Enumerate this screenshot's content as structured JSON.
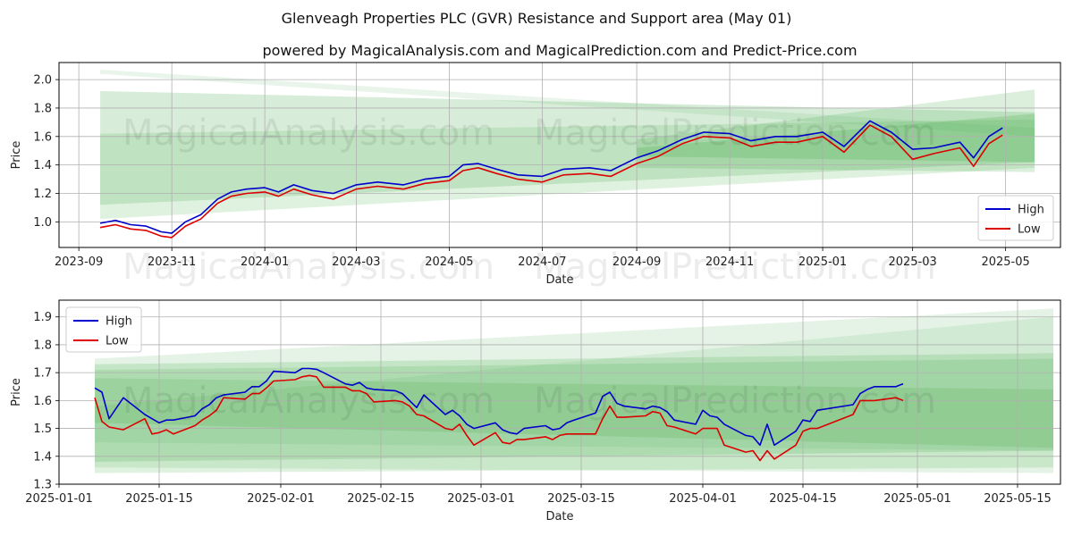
{
  "title": "Glenveagh Properties PLC (GVR) Resistance and Support area (May 01)",
  "subtitle": "powered by MagicalAnalysis.com and MagicalPrediction.com and Predict-Price.com",
  "watermarks": [
    "MagicalAnalysis.com",
    "MagicalPrediction.com"
  ],
  "colors": {
    "high": "#0000cc",
    "low": "#dd0000",
    "band": "#4caf50",
    "grid": "#b0b0b0"
  },
  "chart_data": [
    {
      "type": "line",
      "xlabel": "Date",
      "ylabel": "Price",
      "ylim": [
        0.82,
        2.12
      ],
      "xlim": [
        "2023-08-19",
        "2025-06-06"
      ],
      "grid": true,
      "legend_position": "lower-right",
      "x_ticks": [
        "2023-09",
        "2023-11",
        "2024-01",
        "2024-03",
        "2024-05",
        "2024-07",
        "2024-09",
        "2024-11",
        "2025-01",
        "2025-03",
        "2025-05"
      ],
      "y_ticks": [
        "1.0",
        "1.2",
        "1.4",
        "1.6",
        "1.8",
        "2.0"
      ],
      "bands": [
        {
          "x": [
            "2023-09-15",
            "2025-05-20"
          ],
          "top": [
            1.92,
            1.77
          ],
          "bottom": [
            1.12,
            1.42
          ],
          "opacity": 0.22
        },
        {
          "x": [
            "2023-09-15",
            "2025-05-20"
          ],
          "top": [
            1.62,
            1.72
          ],
          "bottom": [
            1.02,
            1.38
          ],
          "opacity": 0.18
        },
        {
          "x": [
            "2024-09-01",
            "2025-05-20"
          ],
          "top": [
            1.58,
            1.93
          ],
          "bottom": [
            1.38,
            1.35
          ],
          "opacity": 0.2
        },
        {
          "x": [
            "2024-09-01",
            "2025-05-20"
          ],
          "top": [
            1.52,
            1.76
          ],
          "bottom": [
            1.46,
            1.42
          ],
          "opacity": 0.25
        },
        {
          "x": [
            "2023-09-15",
            "2025-05-20"
          ],
          "top": [
            2.07,
            1.66
          ],
          "bottom": [
            2.04,
            1.6
          ],
          "opacity": 0.12
        }
      ],
      "series": [
        {
          "name": "High",
          "x": [
            "2023-09-15",
            "2023-09-25",
            "2023-10-05",
            "2023-10-15",
            "2023-10-25",
            "2023-11-01",
            "2023-11-10",
            "2023-11-20",
            "2023-12-01",
            "2023-12-10",
            "2023-12-20",
            "2024-01-01",
            "2024-01-10",
            "2024-01-20",
            "2024-02-01",
            "2024-02-15",
            "2024-03-01",
            "2024-03-15",
            "2024-04-01",
            "2024-04-15",
            "2024-05-01",
            "2024-05-10",
            "2024-05-20",
            "2024-06-01",
            "2024-06-15",
            "2024-07-01",
            "2024-07-15",
            "2024-08-01",
            "2024-08-15",
            "2024-09-01",
            "2024-09-15",
            "2024-10-01",
            "2024-10-15",
            "2024-11-01",
            "2024-11-15",
            "2024-12-01",
            "2024-12-15",
            "2025-01-01",
            "2025-01-15",
            "2025-02-01",
            "2025-02-15",
            "2025-03-01",
            "2025-03-15",
            "2025-04-01",
            "2025-04-10",
            "2025-04-20",
            "2025-04-29"
          ],
          "values": [
            0.99,
            1.01,
            0.98,
            0.97,
            0.93,
            0.92,
            1.0,
            1.05,
            1.16,
            1.21,
            1.23,
            1.24,
            1.21,
            1.26,
            1.22,
            1.2,
            1.26,
            1.28,
            1.26,
            1.3,
            1.32,
            1.4,
            1.41,
            1.37,
            1.33,
            1.32,
            1.37,
            1.38,
            1.36,
            1.45,
            1.5,
            1.58,
            1.63,
            1.62,
            1.57,
            1.6,
            1.6,
            1.63,
            1.53,
            1.71,
            1.63,
            1.51,
            1.52,
            1.56,
            1.45,
            1.6,
            1.66
          ]
        },
        {
          "name": "Low",
          "x": [
            "2023-09-15",
            "2023-09-25",
            "2023-10-05",
            "2023-10-15",
            "2023-10-25",
            "2023-11-01",
            "2023-11-10",
            "2023-11-20",
            "2023-12-01",
            "2023-12-10",
            "2023-12-20",
            "2024-01-01",
            "2024-01-10",
            "2024-01-20",
            "2024-02-01",
            "2024-02-15",
            "2024-03-01",
            "2024-03-15",
            "2024-04-01",
            "2024-04-15",
            "2024-05-01",
            "2024-05-10",
            "2024-05-20",
            "2024-06-01",
            "2024-06-15",
            "2024-07-01",
            "2024-07-15",
            "2024-08-01",
            "2024-08-15",
            "2024-09-01",
            "2024-09-15",
            "2024-10-01",
            "2024-10-15",
            "2024-11-01",
            "2024-11-15",
            "2024-12-01",
            "2024-12-15",
            "2025-01-01",
            "2025-01-15",
            "2025-02-01",
            "2025-02-15",
            "2025-03-01",
            "2025-03-15",
            "2025-04-01",
            "2025-04-10",
            "2025-04-20",
            "2025-04-29"
          ],
          "values": [
            0.96,
            0.98,
            0.95,
            0.94,
            0.9,
            0.89,
            0.97,
            1.02,
            1.13,
            1.18,
            1.2,
            1.21,
            1.18,
            1.23,
            1.19,
            1.16,
            1.23,
            1.25,
            1.23,
            1.27,
            1.29,
            1.36,
            1.38,
            1.34,
            1.3,
            1.28,
            1.33,
            1.34,
            1.32,
            1.41,
            1.46,
            1.55,
            1.6,
            1.59,
            1.53,
            1.56,
            1.56,
            1.6,
            1.49,
            1.68,
            1.6,
            1.44,
            1.48,
            1.52,
            1.39,
            1.55,
            1.61
          ]
        }
      ]
    },
    {
      "type": "line",
      "xlabel": "Date",
      "ylabel": "Price",
      "ylim": [
        1.3,
        1.96
      ],
      "xlim": [
        "2025-01-01",
        "2025-05-21"
      ],
      "grid": true,
      "legend_position": "upper-left",
      "x_ticks": [
        "2025-01-01",
        "2025-01-15",
        "2025-02-01",
        "2025-02-15",
        "2025-03-01",
        "2025-03-15",
        "2025-04-01",
        "2025-04-15",
        "2025-05-01",
        "2025-05-15"
      ],
      "y_ticks": [
        "1.3",
        "1.4",
        "1.5",
        "1.6",
        "1.7",
        "1.8",
        "1.9"
      ],
      "bands": [
        {
          "x": [
            "2025-01-06",
            "2025-05-20"
          ],
          "top": [
            1.75,
            1.93
          ],
          "bottom": [
            1.36,
            1.34
          ],
          "opacity": 0.15
        },
        {
          "x": [
            "2025-01-06",
            "2025-05-20"
          ],
          "top": [
            1.73,
            1.77
          ],
          "bottom": [
            1.38,
            1.42
          ],
          "opacity": 0.2
        },
        {
          "x": [
            "2025-01-06",
            "2025-05-20"
          ],
          "top": [
            1.71,
            1.75
          ],
          "bottom": [
            1.34,
            1.36
          ],
          "opacity": 0.18
        },
        {
          "x": [
            "2025-01-06",
            "2025-05-20"
          ],
          "top": [
            1.68,
            1.64
          ],
          "bottom": [
            1.52,
            1.43
          ],
          "opacity": 0.2
        },
        {
          "x": [
            "2025-01-06",
            "2025-05-20"
          ],
          "top": [
            1.58,
            1.9
          ],
          "bottom": [
            1.45,
            1.42
          ],
          "opacity": 0.12
        }
      ],
      "series": [
        {
          "name": "High",
          "x": [
            "2025-01-06",
            "2025-01-07",
            "2025-01-08",
            "2025-01-10",
            "2025-01-13",
            "2025-01-14",
            "2025-01-15",
            "2025-01-16",
            "2025-01-17",
            "2025-01-20",
            "2025-01-21",
            "2025-01-22",
            "2025-01-23",
            "2025-01-24",
            "2025-01-27",
            "2025-01-28",
            "2025-01-29",
            "2025-01-30",
            "2025-01-31",
            "2025-02-03",
            "2025-02-04",
            "2025-02-05",
            "2025-02-06",
            "2025-02-07",
            "2025-02-10",
            "2025-02-11",
            "2025-02-12",
            "2025-02-13",
            "2025-02-14",
            "2025-02-17",
            "2025-02-18",
            "2025-02-19",
            "2025-02-20",
            "2025-02-21",
            "2025-02-24",
            "2025-02-25",
            "2025-02-26",
            "2025-02-27",
            "2025-02-28",
            "2025-03-03",
            "2025-03-04",
            "2025-03-05",
            "2025-03-06",
            "2025-03-07",
            "2025-03-10",
            "2025-03-11",
            "2025-03-12",
            "2025-03-13",
            "2025-03-14",
            "2025-03-17",
            "2025-03-18",
            "2025-03-19",
            "2025-03-20",
            "2025-03-21",
            "2025-03-24",
            "2025-03-25",
            "2025-03-26",
            "2025-03-27",
            "2025-03-28",
            "2025-03-31",
            "2025-04-01",
            "2025-04-02",
            "2025-04-03",
            "2025-04-04",
            "2025-04-07",
            "2025-04-08",
            "2025-04-09",
            "2025-04-10",
            "2025-04-11",
            "2025-04-14",
            "2025-04-15",
            "2025-04-16",
            "2025-04-17",
            "2025-04-22",
            "2025-04-23",
            "2025-04-24",
            "2025-04-25",
            "2025-04-28",
            "2025-04-29"
          ],
          "values": [
            1.645,
            1.63,
            1.535,
            1.61,
            1.55,
            1.535,
            1.52,
            1.53,
            1.53,
            1.545,
            1.57,
            1.585,
            1.61,
            1.62,
            1.63,
            1.65,
            1.65,
            1.67,
            1.705,
            1.7,
            1.715,
            1.715,
            1.712,
            1.7,
            1.66,
            1.655,
            1.665,
            1.645,
            1.64,
            1.635,
            1.625,
            1.6,
            1.575,
            1.62,
            1.55,
            1.565,
            1.545,
            1.515,
            1.5,
            1.52,
            1.495,
            1.485,
            1.48,
            1.5,
            1.51,
            1.495,
            1.5,
            1.52,
            1.53,
            1.555,
            1.615,
            1.63,
            1.59,
            1.58,
            1.57,
            1.58,
            1.575,
            1.56,
            1.53,
            1.515,
            1.565,
            1.545,
            1.54,
            1.515,
            1.475,
            1.47,
            1.44,
            1.515,
            1.44,
            1.49,
            1.53,
            1.525,
            1.565,
            1.585,
            1.625,
            1.64,
            1.65,
            1.65,
            1.66
          ]
        },
        {
          "name": "Low",
          "x": [
            "2025-01-06",
            "2025-01-07",
            "2025-01-08",
            "2025-01-10",
            "2025-01-13",
            "2025-01-14",
            "2025-01-15",
            "2025-01-16",
            "2025-01-17",
            "2025-01-20",
            "2025-01-21",
            "2025-01-22",
            "2025-01-23",
            "2025-01-24",
            "2025-01-27",
            "2025-01-28",
            "2025-01-29",
            "2025-01-30",
            "2025-01-31",
            "2025-02-03",
            "2025-02-04",
            "2025-02-05",
            "2025-02-06",
            "2025-02-07",
            "2025-02-10",
            "2025-02-11",
            "2025-02-12",
            "2025-02-13",
            "2025-02-14",
            "2025-02-17",
            "2025-02-18",
            "2025-02-19",
            "2025-02-20",
            "2025-02-21",
            "2025-02-24",
            "2025-02-25",
            "2025-02-26",
            "2025-02-27",
            "2025-02-28",
            "2025-03-03",
            "2025-03-04",
            "2025-03-05",
            "2025-03-06",
            "2025-03-07",
            "2025-03-10",
            "2025-03-11",
            "2025-03-12",
            "2025-03-13",
            "2025-03-14",
            "2025-03-17",
            "2025-03-18",
            "2025-03-19",
            "2025-03-20",
            "2025-03-21",
            "2025-03-24",
            "2025-03-25",
            "2025-03-26",
            "2025-03-27",
            "2025-03-28",
            "2025-03-31",
            "2025-04-01",
            "2025-04-02",
            "2025-04-03",
            "2025-04-04",
            "2025-04-07",
            "2025-04-08",
            "2025-04-09",
            "2025-04-10",
            "2025-04-11",
            "2025-04-14",
            "2025-04-15",
            "2025-04-16",
            "2025-04-17",
            "2025-04-22",
            "2025-04-23",
            "2025-04-24",
            "2025-04-25",
            "2025-04-28",
            "2025-04-29"
          ],
          "values": [
            1.61,
            1.525,
            1.505,
            1.495,
            1.535,
            1.48,
            1.485,
            1.495,
            1.48,
            1.51,
            1.53,
            1.545,
            1.565,
            1.61,
            1.605,
            1.625,
            1.625,
            1.645,
            1.67,
            1.675,
            1.685,
            1.69,
            1.685,
            1.648,
            1.648,
            1.635,
            1.635,
            1.625,
            1.595,
            1.6,
            1.595,
            1.58,
            1.55,
            1.545,
            1.5,
            1.495,
            1.515,
            1.475,
            1.44,
            1.485,
            1.45,
            1.445,
            1.46,
            1.46,
            1.47,
            1.46,
            1.475,
            1.48,
            1.48,
            1.48,
            1.535,
            1.58,
            1.54,
            1.54,
            1.545,
            1.56,
            1.555,
            1.51,
            1.505,
            1.48,
            1.5,
            1.5,
            1.5,
            1.44,
            1.415,
            1.42,
            1.385,
            1.42,
            1.39,
            1.44,
            1.49,
            1.5,
            1.5,
            1.55,
            1.6,
            1.6,
            1.6,
            1.61,
            1.6
          ]
        }
      ]
    }
  ]
}
